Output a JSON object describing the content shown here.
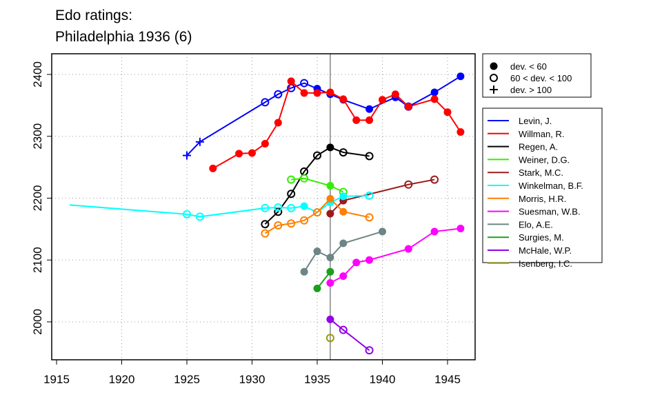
{
  "chart_data": {
    "type": "line",
    "title": [
      "Edo ratings:",
      "Philadelphia 1936 (6)"
    ],
    "xlim": [
      1915,
      1947
    ],
    "ylim": [
      1945,
      2425
    ],
    "xticks": [
      1915,
      1920,
      1925,
      1930,
      1935,
      1940,
      1945
    ],
    "yticks": [
      2000,
      2100,
      2200,
      2300,
      2400
    ],
    "grid": true,
    "reference_year": 1936,
    "marker_legend": [
      {
        "marker": "filled",
        "label": "dev. < 60"
      },
      {
        "marker": "open",
        "label": "60 < dev. < 100"
      },
      {
        "marker": "plus",
        "label": "dev. > 100"
      }
    ],
    "series": [
      {
        "name": "Levin, J.",
        "color": "#0000ff",
        "points": [
          [
            1925,
            2269,
            "plus"
          ],
          [
            1926,
            2291,
            "plus"
          ],
          [
            1931,
            2355,
            "open"
          ],
          [
            1932,
            2368,
            "open"
          ],
          [
            1933,
            2378,
            "open"
          ],
          [
            1934,
            2386,
            "open"
          ],
          [
            1935,
            2377,
            "filled"
          ],
          [
            1936,
            2368,
            "filled"
          ],
          [
            1937,
            2359,
            "filled"
          ],
          [
            1939,
            2344,
            "filled"
          ],
          [
            1941,
            2363,
            "filled"
          ],
          [
            1942,
            2348,
            "open"
          ],
          [
            1944,
            2371,
            "filled"
          ],
          [
            1946,
            2397,
            "filled"
          ]
        ]
      },
      {
        "name": "Willman, R.",
        "color": "#ff0000",
        "points": [
          [
            1927,
            2248,
            "filled"
          ],
          [
            1929,
            2272,
            "filled"
          ],
          [
            1930,
            2273,
            "filled"
          ],
          [
            1931,
            2288,
            "filled"
          ],
          [
            1932,
            2322,
            "filled"
          ],
          [
            1933,
            2389,
            "filled"
          ],
          [
            1934,
            2370,
            "filled"
          ],
          [
            1935,
            2370,
            "filled"
          ],
          [
            1936,
            2371,
            "filled"
          ],
          [
            1937,
            2360,
            "filled"
          ],
          [
            1938,
            2326,
            "filled"
          ],
          [
            1939,
            2326,
            "filled"
          ],
          [
            1940,
            2359,
            "filled"
          ],
          [
            1941,
            2368,
            "filled"
          ],
          [
            1942,
            2348,
            "filled"
          ],
          [
            1944,
            2360,
            "filled"
          ],
          [
            1945,
            2339,
            "filled"
          ],
          [
            1946,
            2307,
            "filled"
          ]
        ]
      },
      {
        "name": "Regen, A.",
        "color": "#000000",
        "points": [
          [
            1931,
            2158,
            "open"
          ],
          [
            1932,
            2178,
            "open"
          ],
          [
            1933,
            2207,
            "open"
          ],
          [
            1934,
            2243,
            "open"
          ],
          [
            1935,
            2269,
            "open"
          ],
          [
            1936,
            2282,
            "filled"
          ],
          [
            1937,
            2274,
            "open"
          ],
          [
            1939,
            2268,
            "open"
          ]
        ]
      },
      {
        "name": "Weiner, D.G.",
        "color": "#33ee00",
        "points": [
          [
            1933,
            2230,
            "open"
          ],
          [
            1934,
            2232,
            "open"
          ],
          [
            1936,
            2220,
            "filled"
          ],
          [
            1937,
            2210,
            "open"
          ]
        ]
      },
      {
        "name": "Stark, M.C.",
        "color": "#9b1b1b",
        "points": [
          [
            1936,
            2175,
            "filled"
          ],
          [
            1937,
            2196,
            "filled"
          ],
          [
            1942,
            2222,
            "open"
          ],
          [
            1944,
            2230,
            "open"
          ]
        ]
      },
      {
        "name": "Winkelman, B.F.",
        "color": "#00ffff",
        "points": [
          [
            1916,
            2189,
            "none"
          ],
          [
            1925,
            2174,
            "open"
          ],
          [
            1926,
            2170,
            "open"
          ],
          [
            1931,
            2184,
            "open"
          ],
          [
            1932,
            2185,
            "open"
          ],
          [
            1933,
            2184,
            "open"
          ],
          [
            1934,
            2187,
            "filled"
          ],
          [
            1935,
            2177,
            "open"
          ],
          [
            1936,
            2193,
            "filled"
          ],
          [
            1937,
            2203,
            "filled"
          ],
          [
            1939,
            2204,
            "open"
          ]
        ]
      },
      {
        "name": "Morris, H.R.",
        "color": "#ff7f00",
        "points": [
          [
            1931,
            2143,
            "open"
          ],
          [
            1932,
            2156,
            "open"
          ],
          [
            1933,
            2159,
            "open"
          ],
          [
            1934,
            2164,
            "open"
          ],
          [
            1935,
            2177,
            "open"
          ],
          [
            1936,
            2199,
            "filled"
          ],
          [
            1937,
            2178,
            "filled"
          ],
          [
            1939,
            2169,
            "open"
          ]
        ]
      },
      {
        "name": "Suesman, W.B.",
        "color": "#ff00ff",
        "points": [
          [
            1936,
            2063,
            "filled"
          ],
          [
            1937,
            2074,
            "filled"
          ],
          [
            1938,
            2096,
            "filled"
          ],
          [
            1939,
            2100,
            "filled"
          ],
          [
            1942,
            2118,
            "filled"
          ],
          [
            1944,
            2146,
            "filled"
          ],
          [
            1946,
            2151,
            "filled"
          ]
        ]
      },
      {
        "name": "Elo, A.E.",
        "color": "#6e8585",
        "points": [
          [
            1934,
            2081,
            "filled"
          ],
          [
            1935,
            2114,
            "filled"
          ],
          [
            1936,
            2104,
            "filled"
          ],
          [
            1937,
            2127,
            "filled"
          ],
          [
            1940,
            2146,
            "filled"
          ]
        ]
      },
      {
        "name": "Surgies, M.",
        "color": "#1aa01a",
        "points": [
          [
            1935,
            2054,
            "filled"
          ],
          [
            1936,
            2081,
            "filled"
          ]
        ]
      },
      {
        "name": "McHale, W.P.",
        "color": "#9400e8",
        "points": [
          [
            1936,
            2004,
            "filled"
          ],
          [
            1937,
            1987,
            "open"
          ],
          [
            1939,
            1954,
            "open"
          ]
        ]
      },
      {
        "name": "Isenberg, I.C.",
        "color": "#999900",
        "points": [
          [
            1936,
            1974,
            "open"
          ]
        ]
      }
    ]
  }
}
